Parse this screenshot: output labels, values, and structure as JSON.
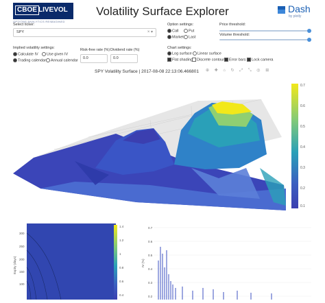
{
  "header": {
    "logo_cboe": "CBOE",
    "logo_livevol": "LIVEVOL",
    "logo_sub": "OPTIONS ANALYTICS REIMAGINED",
    "title": "Volatility Surface Explorer",
    "dash_label": "Dash",
    "dash_sub": "by plotly"
  },
  "controls": {
    "ticker_label": "Select ticker:",
    "ticker_value": "SPY",
    "iv_settings_label": "Implied volatility settings:",
    "iv_options": [
      "Calculate IV",
      "Use given IV"
    ],
    "calendar_options": [
      "Trading calendar",
      "Annual calendar"
    ],
    "risk_free_label": "Risk-free rate (%)",
    "risk_free_value": "0.0",
    "dividend_label": "Dividend rate (%)",
    "dividend_value": "0.0",
    "option_settings_label": "Option settings:",
    "option_type": [
      "Call",
      "Put"
    ],
    "option_price": [
      "Market",
      "Last"
    ],
    "chart_settings_label": "Chart settings:",
    "chart_row1": [
      "Log surface",
      "Linear surface"
    ],
    "chart_row2": [
      "Flat shading",
      "Discrete contour",
      "Error bars",
      "Lock camera"
    ],
    "price_threshold_label": "Price threshold:",
    "volume_threshold_label": "Volume threshold:"
  },
  "surface_plot": {
    "title": "SPY Volatility Surface | 2017-08-08 22:13:06.466801",
    "colorbar_ticks": [
      "0.7",
      "0.6",
      "0.5",
      "0.4",
      "0.3",
      "0.2",
      "0.1"
    ],
    "colors": {
      "low": "#3b3fb0",
      "mid": "#2aa0b8",
      "high": "#f2e81a"
    }
  },
  "bottom_left": {
    "ylabel": "Expiry (days)",
    "yticks": [
      "300",
      "250",
      "200",
      "150",
      "100"
    ],
    "colorbar_ticks": [
      "1.4",
      "1.2",
      "1",
      "0.8",
      "0.6",
      "0.4"
    ]
  },
  "bottom_right": {
    "ylabel": "IV (%)",
    "yticks": [
      "0.7",
      "0.6",
      "0.5",
      "0.4",
      "0.3",
      "0.2"
    ]
  }
}
